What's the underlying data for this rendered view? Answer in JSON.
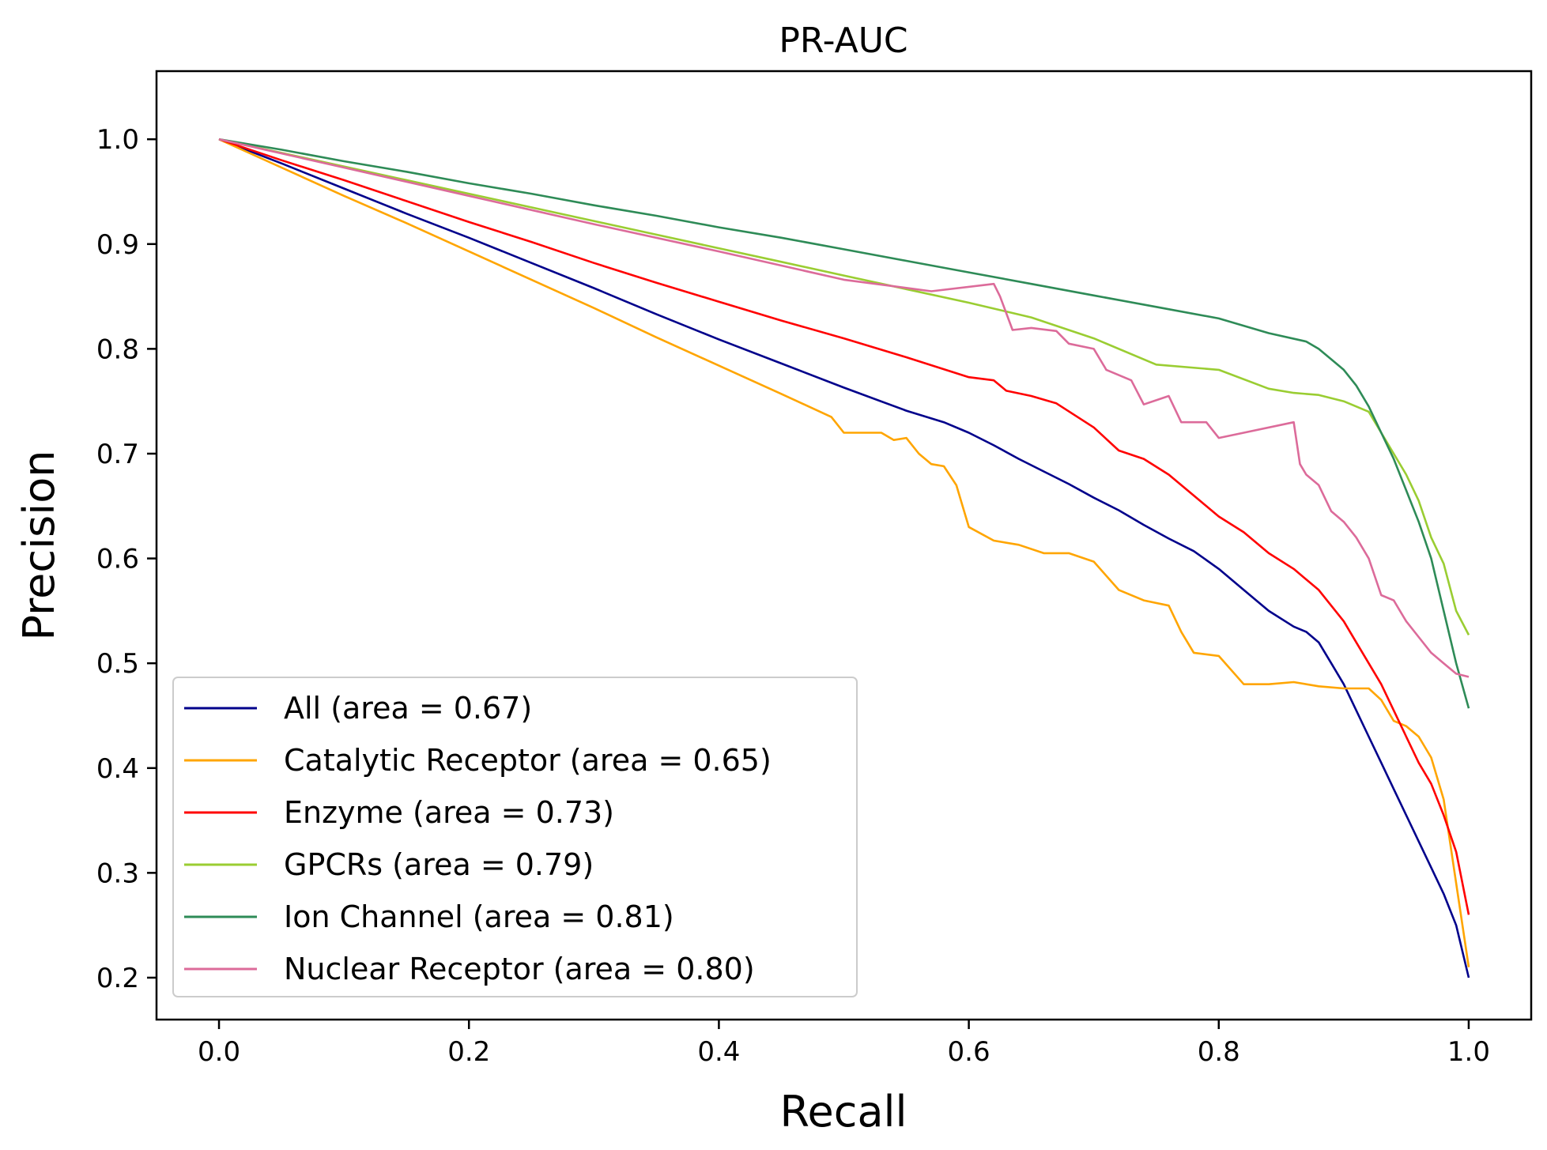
{
  "chart_data": {
    "type": "line",
    "title": "PR-AUC",
    "xlabel": "Recall",
    "ylabel": "Precision",
    "xlim": [
      -0.05,
      1.05
    ],
    "ylim": [
      0.16,
      1.065
    ],
    "xticks": [
      0.0,
      0.2,
      0.4,
      0.6,
      0.8,
      1.0
    ],
    "yticks": [
      0.2,
      0.3,
      0.4,
      0.5,
      0.6,
      0.7,
      0.8,
      0.9,
      1.0
    ],
    "xtick_labels": [
      "0.0",
      "0.2",
      "0.4",
      "0.6",
      "0.8",
      "1.0"
    ],
    "ytick_labels": [
      "0.2",
      "0.3",
      "0.4",
      "0.5",
      "0.6",
      "0.7",
      "0.8",
      "0.9",
      "1.0"
    ],
    "grid": false,
    "legend_position": "lower-left",
    "series": [
      {
        "name": "All (area = 0.67)",
        "color": "#00008b",
        "x": [
          0.0,
          0.05,
          0.1,
          0.15,
          0.2,
          0.25,
          0.3,
          0.35,
          0.4,
          0.45,
          0.5,
          0.55,
          0.58,
          0.6,
          0.62,
          0.64,
          0.66,
          0.68,
          0.7,
          0.72,
          0.74,
          0.76,
          0.78,
          0.8,
          0.82,
          0.84,
          0.86,
          0.87,
          0.88,
          0.89,
          0.9,
          0.91,
          0.92,
          0.93,
          0.94,
          0.95,
          0.96,
          0.97,
          0.98,
          0.99,
          1.0
        ],
        "y": [
          1.0,
          0.977,
          0.953,
          0.929,
          0.906,
          0.882,
          0.858,
          0.833,
          0.809,
          0.786,
          0.763,
          0.741,
          0.73,
          0.72,
          0.708,
          0.695,
          0.683,
          0.671,
          0.658,
          0.646,
          0.632,
          0.619,
          0.607,
          0.59,
          0.57,
          0.55,
          0.535,
          0.53,
          0.52,
          0.5,
          0.48,
          0.455,
          0.43,
          0.405,
          0.38,
          0.355,
          0.33,
          0.305,
          0.28,
          0.25,
          0.2
        ]
      },
      {
        "name": "Catalytic Receptor (area = 0.65)",
        "color": "#ffa500",
        "x": [
          0.0,
          0.05,
          0.1,
          0.15,
          0.2,
          0.25,
          0.3,
          0.35,
          0.4,
          0.45,
          0.49,
          0.5,
          0.51,
          0.53,
          0.54,
          0.55,
          0.56,
          0.57,
          0.58,
          0.59,
          0.6,
          0.62,
          0.64,
          0.66,
          0.68,
          0.7,
          0.72,
          0.74,
          0.76,
          0.77,
          0.78,
          0.8,
          0.82,
          0.84,
          0.86,
          0.88,
          0.9,
          0.92,
          0.93,
          0.94,
          0.95,
          0.96,
          0.97,
          0.98,
          0.99,
          1.0
        ],
        "y": [
          1.0,
          0.973,
          0.946,
          0.92,
          0.893,
          0.866,
          0.839,
          0.811,
          0.784,
          0.757,
          0.735,
          0.72,
          0.72,
          0.72,
          0.713,
          0.715,
          0.7,
          0.69,
          0.688,
          0.67,
          0.63,
          0.617,
          0.613,
          0.605,
          0.605,
          0.597,
          0.57,
          0.56,
          0.555,
          0.53,
          0.51,
          0.507,
          0.48,
          0.48,
          0.482,
          0.478,
          0.476,
          0.476,
          0.465,
          0.445,
          0.44,
          0.43,
          0.41,
          0.37,
          0.29,
          0.21
        ]
      },
      {
        "name": "Enzyme (area = 0.73)",
        "color": "#ff0000",
        "x": [
          0.0,
          0.05,
          0.1,
          0.15,
          0.2,
          0.25,
          0.3,
          0.35,
          0.4,
          0.45,
          0.5,
          0.55,
          0.6,
          0.62,
          0.63,
          0.65,
          0.67,
          0.7,
          0.72,
          0.74,
          0.76,
          0.78,
          0.8,
          0.82,
          0.84,
          0.86,
          0.88,
          0.9,
          0.91,
          0.92,
          0.93,
          0.94,
          0.95,
          0.96,
          0.97,
          0.98,
          0.99,
          1.0
        ],
        "y": [
          1.0,
          0.98,
          0.961,
          0.941,
          0.921,
          0.902,
          0.882,
          0.863,
          0.845,
          0.827,
          0.81,
          0.792,
          0.773,
          0.77,
          0.76,
          0.755,
          0.748,
          0.725,
          0.703,
          0.695,
          0.68,
          0.66,
          0.64,
          0.625,
          0.605,
          0.59,
          0.57,
          0.54,
          0.52,
          0.5,
          0.48,
          0.455,
          0.43,
          0.405,
          0.385,
          0.355,
          0.32,
          0.26
        ]
      },
      {
        "name": "GPCRs (area = 0.79)",
        "color": "#9acd32",
        "x": [
          0.0,
          0.05,
          0.1,
          0.15,
          0.2,
          0.25,
          0.3,
          0.35,
          0.4,
          0.45,
          0.5,
          0.55,
          0.6,
          0.65,
          0.7,
          0.75,
          0.8,
          0.84,
          0.86,
          0.88,
          0.9,
          0.92,
          0.93,
          0.94,
          0.95,
          0.96,
          0.97,
          0.98,
          0.99,
          1.0
        ],
        "y": [
          1.0,
          0.987,
          0.974,
          0.961,
          0.948,
          0.935,
          0.922,
          0.909,
          0.896,
          0.883,
          0.87,
          0.857,
          0.844,
          0.83,
          0.81,
          0.785,
          0.78,
          0.762,
          0.758,
          0.756,
          0.75,
          0.74,
          0.72,
          0.7,
          0.68,
          0.655,
          0.62,
          0.595,
          0.55,
          0.527
        ]
      },
      {
        "name": "Ion Channel (area = 0.81)",
        "color": "#2e8b57",
        "x": [
          0.0,
          0.05,
          0.1,
          0.15,
          0.2,
          0.25,
          0.3,
          0.35,
          0.4,
          0.45,
          0.5,
          0.55,
          0.6,
          0.65,
          0.7,
          0.75,
          0.8,
          0.84,
          0.87,
          0.88,
          0.89,
          0.9,
          0.91,
          0.92,
          0.93,
          0.94,
          0.95,
          0.96,
          0.97,
          0.98,
          0.99,
          1.0
        ],
        "y": [
          1.0,
          0.99,
          0.979,
          0.969,
          0.958,
          0.948,
          0.937,
          0.927,
          0.916,
          0.906,
          0.895,
          0.884,
          0.873,
          0.862,
          0.851,
          0.84,
          0.829,
          0.815,
          0.807,
          0.8,
          0.79,
          0.78,
          0.765,
          0.745,
          0.72,
          0.695,
          0.665,
          0.635,
          0.6,
          0.55,
          0.5,
          0.457
        ]
      },
      {
        "name": "Nuclear Receptor (area = 0.80)",
        "color": "#dc6b9a",
        "x": [
          0.0,
          0.1,
          0.2,
          0.3,
          0.4,
          0.5,
          0.57,
          0.62,
          0.625,
          0.635,
          0.65,
          0.67,
          0.68,
          0.7,
          0.71,
          0.73,
          0.74,
          0.76,
          0.77,
          0.79,
          0.8,
          0.82,
          0.86,
          0.865,
          0.87,
          0.88,
          0.89,
          0.9,
          0.91,
          0.92,
          0.93,
          0.94,
          0.95,
          0.96,
          0.97,
          0.98,
          0.99,
          1.0
        ],
        "y": [
          1.0,
          0.973,
          0.946,
          0.919,
          0.893,
          0.866,
          0.855,
          0.862,
          0.85,
          0.818,
          0.82,
          0.817,
          0.805,
          0.8,
          0.78,
          0.77,
          0.747,
          0.755,
          0.73,
          0.73,
          0.715,
          0.72,
          0.73,
          0.69,
          0.68,
          0.67,
          0.645,
          0.635,
          0.62,
          0.6,
          0.565,
          0.56,
          0.54,
          0.525,
          0.51,
          0.5,
          0.49,
          0.487
        ]
      }
    ]
  }
}
